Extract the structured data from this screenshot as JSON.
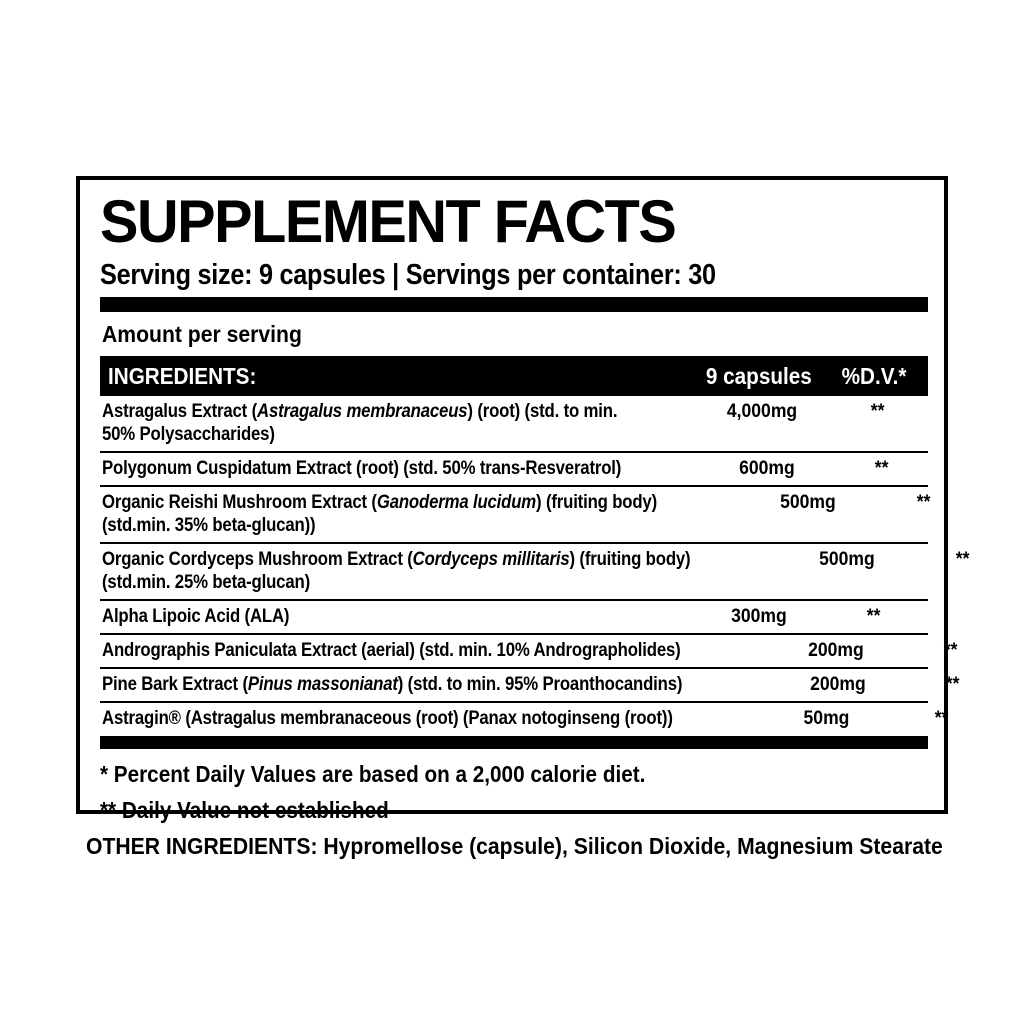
{
  "panel": {
    "title": "SUPPLEMENT FACTS",
    "serving_info": "Serving size: 9 capsules | Servings per container: 30",
    "amount_per_serving_label": "Amount per serving",
    "columns": {
      "ingredients": "INGREDIENTS:",
      "amount": "9 capsules",
      "daily_value": "%D.V.*"
    },
    "rows": [
      {
        "name_lines": [
          [
            {
              "t": "Astragalus Extract ("
            },
            {
              "t": "Astragalus membranaceus",
              "i": true
            },
            {
              "t": ") (root) (std. to min."
            }
          ],
          [
            {
              "t": "50% Polysaccharides)"
            }
          ]
        ],
        "amount": "4,000mg",
        "dv": "**"
      },
      {
        "name_lines": [
          [
            {
              "t": "Polygonum Cuspidatum Extract (root) (std. 50% trans-Resveratrol)"
            }
          ]
        ],
        "amount": "600mg",
        "dv": "**"
      },
      {
        "name_lines": [
          [
            {
              "t": "Organic Reishi Mushroom Extract ("
            },
            {
              "t": "Ganoderma lucidum",
              "i": true
            },
            {
              "t": ") (fruiting body)"
            }
          ],
          [
            {
              "t": "(std.min. 35% beta-glucan))"
            }
          ]
        ],
        "amount": "500mg",
        "dv": "**"
      },
      {
        "name_lines": [
          [
            {
              "t": "Organic Cordyceps Mushroom Extract ("
            },
            {
              "t": "Cordyceps millitaris",
              "i": true
            },
            {
              "t": ") (fruiting body)"
            }
          ],
          [
            {
              "t": "(std.min. 25% beta-glucan)"
            }
          ]
        ],
        "amount": "500mg",
        "dv": "**"
      },
      {
        "name_lines": [
          [
            {
              "t": "Alpha Lipoic Acid (ALA)"
            }
          ]
        ],
        "amount": "300mg",
        "dv": "**"
      },
      {
        "name_lines": [
          [
            {
              "t": "Andrographis Paniculata Extract (aerial) (std. min. 10% Andrographolides)"
            }
          ]
        ],
        "amount": "200mg",
        "dv": "**"
      },
      {
        "name_lines": [
          [
            {
              "t": "Pine Bark Extract ("
            },
            {
              "t": "Pinus massonianat",
              "i": true
            },
            {
              "t": ") (std. to min. 95% Proanthocandins)"
            }
          ]
        ],
        "amount": "200mg",
        "dv": "**"
      },
      {
        "name_lines": [
          [
            {
              "t": "Astragin® (Astragalus membranaceous (root) (Panax notoginseng (root))"
            }
          ]
        ],
        "amount": "50mg",
        "dv": "**"
      }
    ],
    "footnotes": [
      "* Percent Daily Values are based on a 2,000 calorie diet.",
      "** Daily Value not established"
    ],
    "other_ingredients": "OTHER INGREDIENTS: Hypromellose (capsule), Silicon Dioxide, Magnesium Stearate",
    "colors": {
      "ink": "#000000",
      "background": "#ffffff"
    }
  }
}
